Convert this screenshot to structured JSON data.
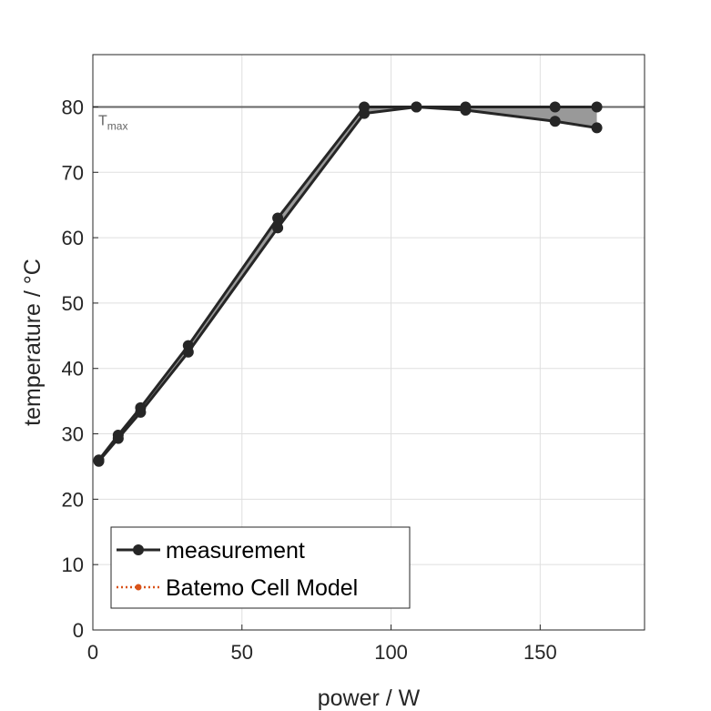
{
  "chart_data": {
    "type": "line",
    "title": "",
    "xlabel": "power / W",
    "ylabel": "temperature / °C",
    "xlim": [
      0,
      185
    ],
    "ylim": [
      0,
      88
    ],
    "xticks": [
      0,
      50,
      100,
      150
    ],
    "yticks": [
      0,
      10,
      20,
      30,
      40,
      50,
      60,
      70,
      80
    ],
    "grid": true,
    "legend_position": "bottom-left",
    "threshold": {
      "value": 80,
      "label_main": "T",
      "label_sub": "max"
    },
    "series": [
      {
        "name": "measurement",
        "color": "#262626",
        "marker": "circle",
        "line": "solid",
        "band_color": "#999999",
        "x": [
          2,
          8.5,
          16,
          32,
          62,
          91,
          108.5,
          125,
          155,
          169
        ],
        "y_upper": [
          26,
          29.8,
          34,
          43.5,
          63,
          80,
          80,
          80,
          80,
          80
        ],
        "y_lower": [
          25.8,
          29.3,
          33.3,
          42.5,
          61.5,
          79,
          80,
          79.5,
          77.8,
          76.8
        ]
      },
      {
        "name": "Batemo Cell Model",
        "color": "#d95319",
        "marker": "circle",
        "line": "dotted",
        "x": [],
        "y": []
      }
    ]
  }
}
